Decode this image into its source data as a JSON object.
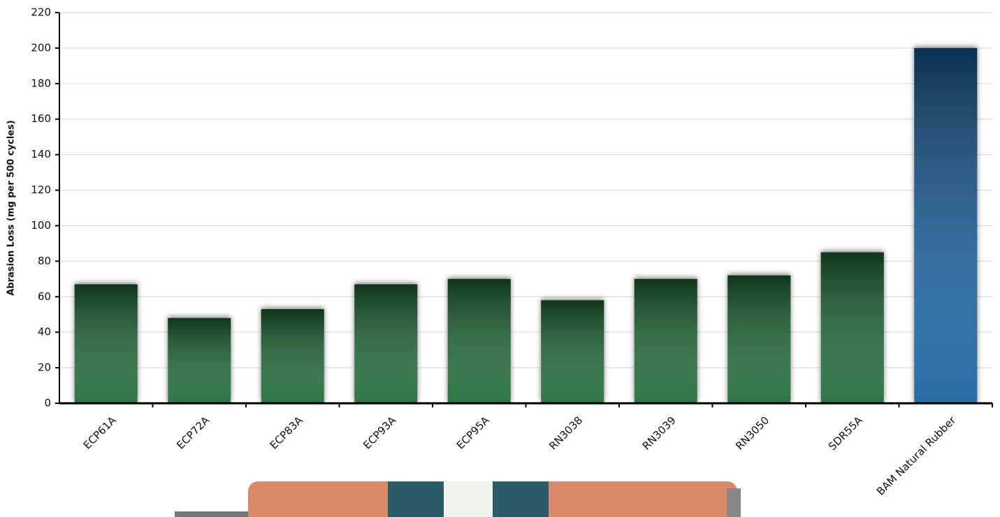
{
  "chart_data": {
    "type": "bar",
    "y_label": "Abrasion Loss (mg per 500 cycles)",
    "categories": [
      "ECP61A",
      "ECP72A",
      "ECP83A",
      "ECP93A",
      "ECP95A",
      "RN3038",
      "RN3039",
      "RN3050",
      "SDR55A",
      "BAM Natural Rubber"
    ],
    "values": [
      67,
      48,
      53,
      67,
      70,
      58,
      70,
      72,
      85,
      200
    ],
    "colors": [
      "#1f6b35",
      "#1f6b35",
      "#1f6b35",
      "#1f6b35",
      "#1f6b35",
      "#1f6b35",
      "#1f6b35",
      "#1f6b35",
      "#1f6b35",
      "#1560a0"
    ],
    "ylim": [
      0,
      220
    ],
    "yticks": [
      0,
      20,
      40,
      60,
      80,
      100,
      120,
      140,
      160,
      180,
      200,
      220
    ],
    "grid": true
  }
}
